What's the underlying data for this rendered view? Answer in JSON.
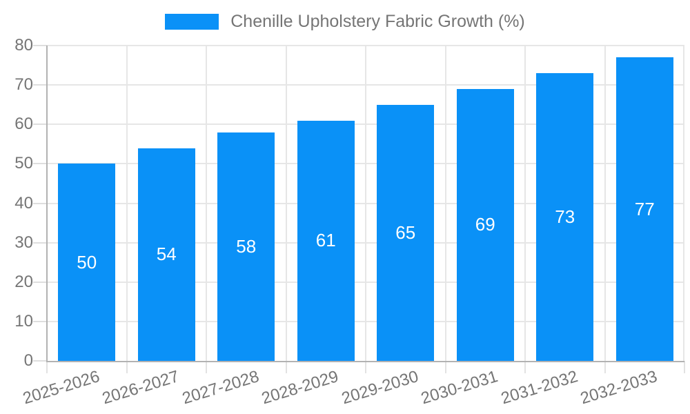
{
  "legend": {
    "position": "top",
    "items": [
      {
        "label": "Chenille Upholstery Fabric Growth (%)",
        "color": "#0a91f7"
      }
    ]
  },
  "chart_data": {
    "type": "bar",
    "title": "Chenille Upholstery Fabric Growth (%)",
    "categories": [
      "2025-2026",
      "2026-2027",
      "2027-2028",
      "2028-2029",
      "2029-2030",
      "2030-2031",
      "2031-2032",
      "2032-2033"
    ],
    "values": [
      50,
      54,
      58,
      61,
      65,
      69,
      73,
      77
    ],
    "series": [
      {
        "name": "Chenille Upholstery Fabric Growth (%)",
        "values": [
          50,
          54,
          58,
          61,
          65,
          69,
          73,
          77
        ]
      }
    ],
    "bar_labels": [
      "50",
      "54",
      "58",
      "61",
      "65",
      "69",
      "73",
      "77"
    ],
    "xlabel": "",
    "ylabel": "",
    "ylim": [
      0,
      80
    ],
    "y_ticks": [
      0,
      10,
      20,
      30,
      40,
      50,
      60,
      70,
      80
    ],
    "grid": true,
    "legend_position": "top",
    "x_label_rotation_deg": -17,
    "colors": {
      "bar": "#0a91f7",
      "bar_label": "#ffffff",
      "axis_text": "#757575",
      "grid_line": "#e6e6e6",
      "axis_line": "#b2b2b2",
      "background": "#ffffff"
    }
  }
}
